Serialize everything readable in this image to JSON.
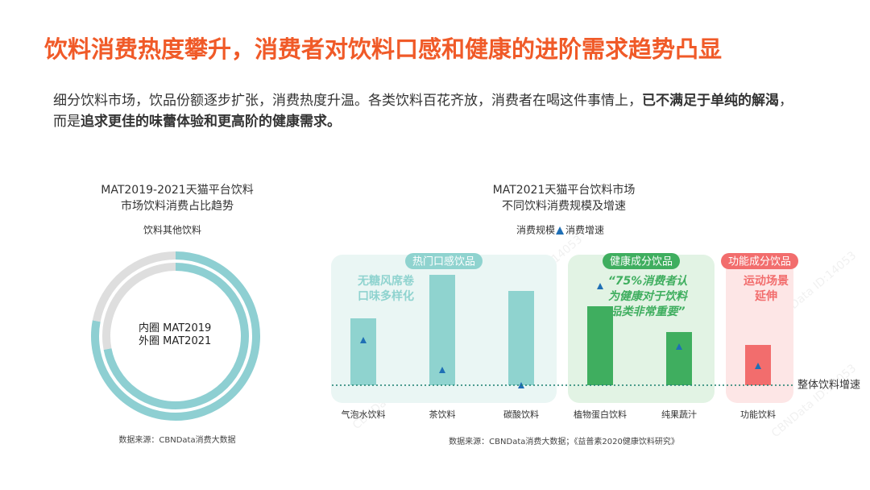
{
  "title": "饮料消费热度攀升，消费者对饮料口感和健康的进阶需求趋势凸显",
  "intro": [
    {
      "text": "细分饮料市场，饮品份额逐步扩张，消费热度升温。各类饮料百花齐放，消费者在喝这件事情上，",
      "bold": false
    },
    {
      "text": "已不满足于单纯的解渴",
      "bold": true
    },
    {
      "text": "，而是",
      "bold": false
    },
    {
      "text": "追求更佳的味蕾体验和更高阶的健康需求。",
      "bold": true
    }
  ],
  "watermark": "CBNData ID:14053",
  "chart_data": [
    {
      "type": "donut",
      "title": [
        "MAT2019-2021天猫平台饮料",
        "市场饮料消费占比趋势"
      ],
      "categories": [
        "饮料",
        "其他饮料"
      ],
      "colors": [
        "#8ecfd2",
        "#dedede"
      ],
      "center_label": "内圈 MAT2019 外圈 MAT2021",
      "series": [
        {
          "name": "MAT2019",
          "values": [
            72,
            28
          ]
        },
        {
          "name": "MAT2021",
          "values": [
            78,
            22
          ]
        }
      ],
      "source": "数据来源：CBNData消费大数据"
    },
    {
      "type": "bar",
      "title": [
        "MAT2021天猫平台饮料市场",
        "不同饮料消费规模及增速"
      ],
      "legend": [
        "消费规模",
        "消费增速"
      ],
      "marker_color": "#1f6fb5",
      "ylim": [
        0,
        160
      ],
      "groups": [
        {
          "name": "热门口感饮品",
          "color": "#8fd3cf",
          "background": "#eaf6f4",
          "note": [
            "无糖风席卷",
            "口味多样化"
          ],
          "categories": [
            "气泡水饮料",
            "茶饮料",
            "碳酸饮料"
          ],
          "scale": [
            83,
            137,
            117
          ],
          "growth": [
            56,
            19,
            0
          ]
        },
        {
          "name": "健康成分饮品",
          "color": "#3fae5f",
          "background": "#e2f3e4",
          "note": [
            "“75%消费者认",
            "为健康对于饮料",
            "品类非常重要”"
          ],
          "categories": [
            "植物蛋白饮料",
            "纯果蔬汁"
          ],
          "scale": [
            98,
            66
          ],
          "growth": [
            123,
            48
          ]
        },
        {
          "name": "功能成分饮品",
          "color": "#f26d6d",
          "background": "#fde6e6",
          "note": [
            "运动场景",
            "延伸"
          ],
          "categories": [
            "功能饮料"
          ],
          "scale": [
            50
          ],
          "growth": [
            24
          ]
        }
      ],
      "reference_line": {
        "label": "整体饮料增速",
        "value": 0,
        "color": "#1a7f6e"
      },
      "source": "数据来源：CBNData消费大数据；《益普素2020健康饮料研究》"
    }
  ]
}
